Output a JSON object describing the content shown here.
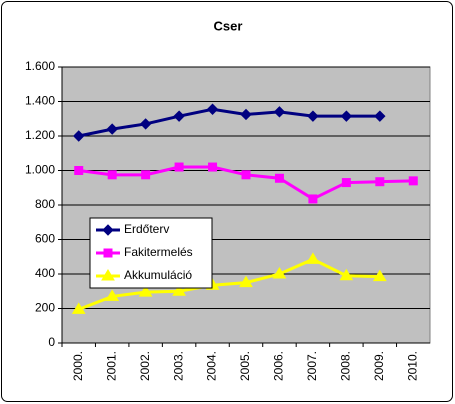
{
  "chart_data": {
    "type": "line",
    "title": "Cser",
    "categories": [
      "2000.",
      "2001.",
      "2002.",
      "2003.",
      "2004.",
      "2005.",
      "2006.",
      "2007.",
      "2008.",
      "2009.",
      "2010."
    ],
    "series": [
      {
        "name": "Erdőterv",
        "color": "#000080",
        "marker": "diamond",
        "values": [
          1200,
          1240,
          1270,
          1315,
          1355,
          1325,
          1340,
          1315,
          1315,
          1315,
          null
        ]
      },
      {
        "name": "Fakitermelés",
        "color": "#ff00ff",
        "marker": "square",
        "values": [
          1000,
          975,
          975,
          1020,
          1020,
          975,
          955,
          835,
          930,
          935,
          940
        ]
      },
      {
        "name": "Akkumuláció",
        "color": "#ffff00",
        "marker": "triangle",
        "values": [
          195,
          270,
          295,
          300,
          335,
          350,
          400,
          485,
          390,
          385,
          null
        ]
      }
    ],
    "ylim": [
      0,
      1600
    ],
    "yticks": [
      0,
      200,
      400,
      600,
      800,
      {
        "value": 1000,
        "label": "1.000"
      },
      {
        "value": 1200,
        "label": "1.200"
      },
      {
        "value": 1400,
        "label": "1.400"
      },
      {
        "value": 1600,
        "label": "1.600"
      }
    ],
    "grid": true,
    "legend": "left"
  }
}
